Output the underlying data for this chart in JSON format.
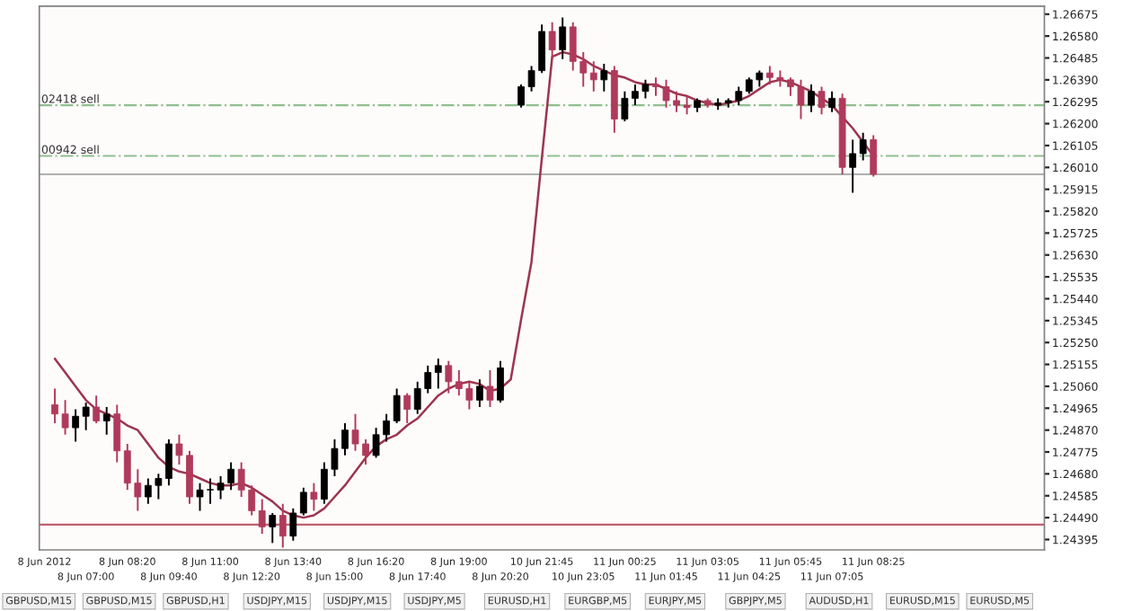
{
  "chart_data": {
    "type": "candlestick",
    "categories": [
      "8 Jun 2012",
      null,
      null,
      null,
      "8 Jun 07:00",
      null,
      null,
      null,
      "8 Jun 08:20",
      null,
      null,
      null,
      "8 Jun 09:40",
      null,
      null,
      null,
      "8 Jun 11:00",
      null,
      null,
      null,
      "8 Jun 12:20",
      null,
      null,
      null,
      "8 Jun 13:40",
      null,
      null,
      null,
      "8 Jun 15:00",
      null,
      null,
      null,
      "8 Jun 16:20",
      null,
      null,
      null,
      "8 Jun 17:40",
      null,
      null,
      null,
      "8 Jun 19:00",
      null,
      null,
      null,
      "8 Jun 20:20",
      null,
      null,
      null,
      "10 Jun 21:45",
      null,
      null,
      null,
      "10 Jun 23:05",
      null,
      null,
      null,
      "11 Jun 00:25",
      null,
      null,
      null,
      "11 Jun 01:45",
      null,
      null,
      null,
      "11 Jun 03:05",
      null,
      null,
      null,
      "11 Jun 04:25",
      null,
      null,
      null,
      "11 Jun 05:45",
      null,
      null,
      null,
      "11 Jun 07:05",
      null,
      null,
      null,
      "11 Jun 08:25",
      null,
      null,
      null,
      null,
      null,
      null,
      null,
      null,
      null,
      null,
      null,
      null,
      null,
      null,
      null,
      null
    ],
    "ohlc": [
      null,
      [
        1.2498,
        1.2505,
        1.249,
        1.2494
      ],
      [
        1.2494,
        1.25,
        1.2485,
        1.2488
      ],
      [
        1.2488,
        1.2496,
        1.2482,
        1.2493
      ],
      [
        1.2493,
        1.2499,
        1.2487,
        1.2497
      ],
      [
        1.2497,
        1.2502,
        1.249,
        1.2491
      ],
      [
        1.2491,
        1.2497,
        1.2485,
        1.2494
      ],
      [
        1.2494,
        1.2498,
        1.2473,
        1.2478
      ],
      [
        1.2478,
        1.2481,
        1.2461,
        1.2464
      ],
      [
        1.2464,
        1.247,
        1.2452,
        1.2458
      ],
      [
        1.2458,
        1.2466,
        1.2455,
        1.2463
      ],
      [
        1.2463,
        1.2468,
        1.2457,
        1.2466
      ],
      [
        1.2466,
        1.2483,
        1.2463,
        1.2481
      ],
      [
        1.2481,
        1.2485,
        1.2472,
        1.2476
      ],
      [
        1.2476,
        1.2478,
        1.2455,
        1.2458
      ],
      [
        1.2458,
        1.2464,
        1.2452,
        1.2461
      ],
      [
        1.2461,
        1.2466,
        1.2455,
        1.2461
      ],
      [
        1.2461,
        1.2467,
        1.2457,
        1.2464
      ],
      [
        1.2464,
        1.2473,
        1.2461,
        1.247
      ],
      [
        1.247,
        1.2473,
        1.2458,
        1.2461
      ],
      [
        1.2461,
        1.2463,
        1.245,
        1.2452
      ],
      [
        1.2452,
        1.2457,
        1.2442,
        1.2445
      ],
      [
        1.2445,
        1.2451,
        1.2438,
        1.245
      ],
      [
        1.245,
        1.2455,
        1.2436,
        1.2441
      ],
      [
        1.2441,
        1.2453,
        1.2439,
        1.2451
      ],
      [
        1.2451,
        1.2462,
        1.245,
        1.246
      ],
      [
        1.246,
        1.2464,
        1.2452,
        1.2457
      ],
      [
        1.2457,
        1.2473,
        1.2455,
        1.247
      ],
      [
        1.247,
        1.2483,
        1.2467,
        1.2479
      ],
      [
        1.2479,
        1.249,
        1.2476,
        1.2487
      ],
      [
        1.2487,
        1.2494,
        1.2478,
        1.2481
      ],
      [
        1.2481,
        1.2483,
        1.2472,
        1.2476
      ],
      [
        1.2476,
        1.2488,
        1.2475,
        1.2485
      ],
      [
        1.2485,
        1.2494,
        1.2482,
        1.2491
      ],
      [
        1.2491,
        1.2505,
        1.249,
        1.2502
      ],
      [
        1.2502,
        1.2503,
        1.249,
        1.2496
      ],
      [
        1.2496,
        1.2508,
        1.2494,
        1.2505
      ],
      [
        1.2505,
        1.2515,
        1.2503,
        1.2512
      ],
      [
        1.2512,
        1.2518,
        1.2505,
        1.2515
      ],
      [
        1.2515,
        1.2517,
        1.2503,
        1.2508
      ],
      [
        1.2508,
        1.2513,
        1.2502,
        1.2505
      ],
      [
        1.2505,
        1.2508,
        1.2496,
        1.25
      ],
      [
        1.25,
        1.2509,
        1.2497,
        1.2506
      ],
      [
        1.2506,
        1.2513,
        1.2497,
        1.25
      ],
      [
        1.25,
        1.2517,
        1.2499,
        1.2514
      ],
      null,
      [
        1.2628,
        1.2637,
        1.2627,
        1.2636
      ],
      [
        1.2636,
        1.2645,
        1.2634,
        1.2643
      ],
      [
        1.2643,
        1.2663,
        1.2642,
        1.266
      ],
      [
        1.266,
        1.2664,
        1.2648,
        1.2652
      ],
      [
        1.2652,
        1.2666,
        1.2648,
        1.2662
      ],
      [
        1.2662,
        1.2664,
        1.2643,
        1.2647
      ],
      [
        1.2647,
        1.2651,
        1.2636,
        1.2642
      ],
      [
        1.2642,
        1.2647,
        1.2634,
        1.2639
      ],
      [
        1.2639,
        1.2646,
        1.2634,
        1.2643
      ],
      [
        1.2643,
        1.2645,
        1.2616,
        1.2622
      ],
      [
        1.2622,
        1.2634,
        1.2621,
        1.2631
      ],
      [
        1.2631,
        1.2637,
        1.2628,
        1.2634
      ],
      [
        1.2634,
        1.2639,
        1.2631,
        1.2637
      ],
      [
        1.2637,
        1.264,
        1.2632,
        1.2636
      ],
      [
        1.2636,
        1.2639,
        1.2627,
        1.263
      ],
      [
        1.263,
        1.2634,
        1.2625,
        1.2628
      ],
      [
        1.2628,
        1.2632,
        1.2624,
        1.2627
      ],
      [
        1.2627,
        1.2631,
        1.2625,
        1.263
      ],
      [
        1.263,
        1.2631,
        1.2627,
        1.2628
      ],
      [
        1.2628,
        1.2631,
        1.2626,
        1.2629
      ],
      [
        1.2629,
        1.2631,
        1.2627,
        1.263
      ],
      [
        1.263,
        1.2636,
        1.2628,
        1.2634
      ],
      [
        1.2634,
        1.264,
        1.2633,
        1.2639
      ],
      [
        1.2639,
        1.2643,
        1.2636,
        1.2642
      ],
      [
        1.2642,
        1.2645,
        1.2637,
        1.264
      ],
      [
        1.264,
        1.2643,
        1.2636,
        1.2639
      ],
      [
        1.2639,
        1.264,
        1.2632,
        1.2636
      ],
      [
        1.2636,
        1.2639,
        1.2622,
        1.2628
      ],
      [
        1.2628,
        1.2637,
        1.2625,
        1.2634
      ],
      [
        1.2634,
        1.2636,
        1.2624,
        1.2627
      ],
      [
        1.2627,
        1.2634,
        1.2625,
        1.2631
      ],
      [
        1.2631,
        1.2633,
        1.2598,
        1.2601
      ],
      [
        1.2601,
        1.2613,
        1.259,
        1.2607
      ],
      [
        1.2607,
        1.2616,
        1.2604,
        1.2613
      ],
      [
        1.2613,
        1.2615,
        1.2597,
        1.2598
      ],
      null,
      null,
      null,
      null,
      null,
      null,
      null,
      null,
      null,
      null,
      null,
      null,
      null,
      null,
      null,
      null
    ],
    "colors": [
      null,
      "#b03a5b",
      "#b03a5b",
      "#000000",
      "#000000",
      "#b03a5b",
      "#000000",
      "#b03a5b",
      "#b03a5b",
      "#b03a5b",
      "#000000",
      "#000000",
      "#000000",
      "#b03a5b",
      "#b03a5b",
      "#000000",
      "#000000",
      "#000000",
      "#000000",
      "#b03a5b",
      "#b03a5b",
      "#b03a5b",
      "#000000",
      "#b03a5b",
      "#000000",
      "#000000",
      "#b03a5b",
      "#000000",
      "#000000",
      "#000000",
      "#b03a5b",
      "#b03a5b",
      "#000000",
      "#000000",
      "#000000",
      "#b03a5b",
      "#000000",
      "#000000",
      "#000000",
      "#b03a5b",
      "#b03a5b",
      "#b03a5b",
      "#000000",
      "#b03a5b",
      "#000000",
      null,
      "#000000",
      "#000000",
      "#000000",
      "#b03a5b",
      "#000000",
      "#b03a5b",
      "#b03a5b",
      "#b03a5b",
      "#000000",
      "#b03a5b",
      "#000000",
      "#000000",
      "#000000",
      "#b03a5b",
      "#b03a5b",
      "#b03a5b",
      "#b03a5b",
      "#000000",
      "#b03a5b",
      "#000000",
      "#000000",
      "#000000",
      "#000000",
      "#000000",
      "#b03a5b",
      "#b03a5b",
      "#b03a5b",
      "#b03a5b",
      "#000000",
      "#b03a5b",
      "#000000",
      "#b03a5b",
      "#000000",
      "#000000",
      "#b03a5b",
      null,
      null,
      null,
      null,
      null,
      null,
      null,
      null,
      null,
      null,
      null,
      null,
      null,
      null,
      null,
      null
    ],
    "series": [
      {
        "type": "line",
        "color": "#9c3550",
        "values": [
          null,
          1.2518,
          1.2512,
          1.2506,
          1.25,
          1.2496,
          1.2494,
          1.2492,
          1.2489,
          1.2487,
          1.2481,
          1.2475,
          1.2471,
          1.2469,
          1.2468,
          1.2466,
          1.2464,
          1.2463,
          1.2463,
          1.2464,
          1.2462,
          1.2459,
          1.2456,
          1.2452,
          1.245,
          1.2449,
          1.245,
          1.2453,
          1.2458,
          1.2463,
          1.2469,
          1.2475,
          1.248,
          1.2483,
          1.2485,
          1.2489,
          1.2492,
          1.2497,
          1.2502,
          1.2505,
          1.2507,
          1.2508,
          1.2507,
          1.2504,
          1.2505,
          1.2509,
          1.2535,
          1.256,
          1.2605,
          1.2649,
          1.2651,
          1.265,
          1.2648,
          1.2645,
          1.2643,
          1.2641,
          1.264,
          1.2638,
          1.2637,
          1.2637,
          1.2635,
          1.2633,
          1.2632,
          1.263,
          1.2629,
          1.2628,
          1.2629,
          1.263,
          1.2632,
          1.2635,
          1.2638,
          1.2639,
          1.2638,
          1.2636,
          1.2634,
          1.2631,
          1.2628,
          1.2623,
          1.2618,
          1.2612,
          1.2606,
          null,
          null,
          null,
          null,
          null,
          null,
          null,
          null,
          null,
          null,
          null,
          null,
          null,
          null,
          null,
          null
        ]
      }
    ],
    "ylim": [
      1.2435,
      1.2671
    ],
    "yticks": [
      {
        "value": 1.24395,
        "label": "1.24395"
      },
      {
        "value": 1.2449,
        "label": "1.24490"
      },
      {
        "value": 1.24585,
        "label": "1.24585"
      },
      {
        "value": 1.2468,
        "label": "1.24680"
      },
      {
        "value": 1.24775,
        "label": "1.24775"
      },
      {
        "value": 1.2487,
        "label": "1.24870"
      },
      {
        "value": 1.24965,
        "label": "1.24965"
      },
      {
        "value": 1.2506,
        "label": "1.25060"
      },
      {
        "value": 1.25155,
        "label": "1.25155"
      },
      {
        "value": 1.2525,
        "label": "1.25250"
      },
      {
        "value": 1.25345,
        "label": "1.25345"
      },
      {
        "value": 1.2544,
        "label": "1.25440"
      },
      {
        "value": 1.25535,
        "label": "1.25535"
      },
      {
        "value": 1.2563,
        "label": "1.25630"
      },
      {
        "value": 1.25725,
        "label": "1.25725"
      },
      {
        "value": 1.2582,
        "label": "1.25820"
      },
      {
        "value": 1.25915,
        "label": "1.25915"
      },
      {
        "value": 1.2601,
        "label": "1.26010"
      },
      {
        "value": 1.26105,
        "label": "1.26105"
      },
      {
        "value": 1.262,
        "label": "1.26200"
      },
      {
        "value": 1.26295,
        "label": "1.26295"
      },
      {
        "value": 1.2639,
        "label": "1.26390"
      },
      {
        "value": 1.26485,
        "label": "1.26485"
      },
      {
        "value": 1.2658,
        "label": "1.26580"
      },
      {
        "value": 1.26675,
        "label": "1.26675"
      }
    ],
    "ref_lines": [
      {
        "axis": "y",
        "value": 1.2628,
        "label": "02418 sell",
        "color": "#8fbf8f",
        "line_style": "dashdot"
      },
      {
        "axis": "y",
        "value": 1.2606,
        "label": "00942 sell",
        "color": "#8fbf8f",
        "line_style": "dashdot"
      },
      {
        "axis": "y",
        "value": 1.2598,
        "color": "#b0b0b0",
        "line_style": "solid"
      },
      {
        "axis": "y",
        "value": 1.2446,
        "color": "#c06070",
        "line_style": "solid"
      }
    ],
    "annotations": [
      "GBPUSD,M15",
      "GBPUSD,M15",
      "GBPUSD,H1",
      "USDJPY,M15",
      "USDJPY,M15",
      "USDJPY,M5",
      "EURUSD,H1",
      "EURGBP,M5",
      "EURJPY,M5",
      "GBPJPY,M5",
      "AUDUSD,H1",
      "EURUSD,M15",
      "EURUSD,M5"
    ]
  }
}
